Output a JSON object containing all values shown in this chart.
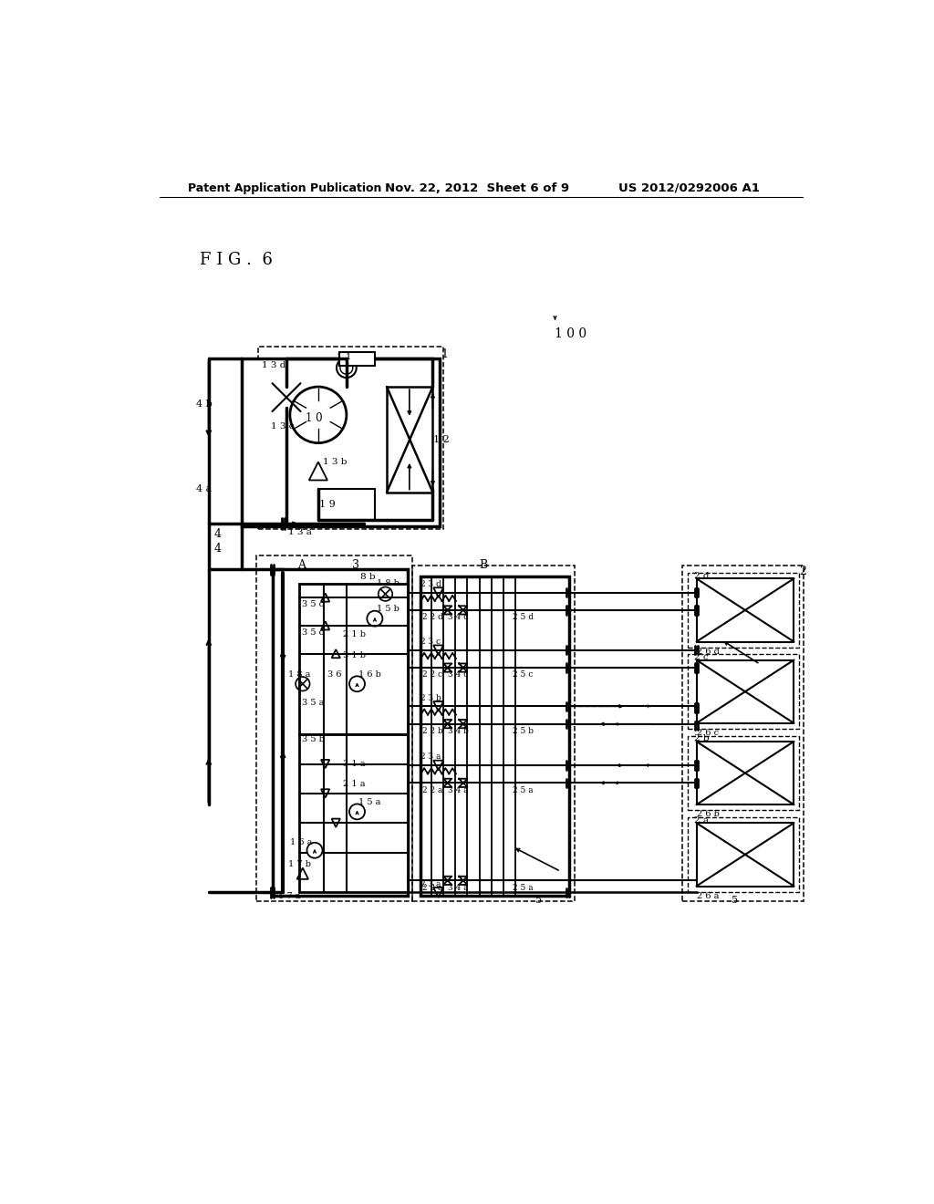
{
  "title_left": "Patent Application Publication",
  "title_mid": "Nov. 22, 2012  Sheet 6 of 9",
  "title_right": "US 2012/0292006 A1",
  "fig_label": "F I G .  6",
  "bg_color": "#ffffff"
}
